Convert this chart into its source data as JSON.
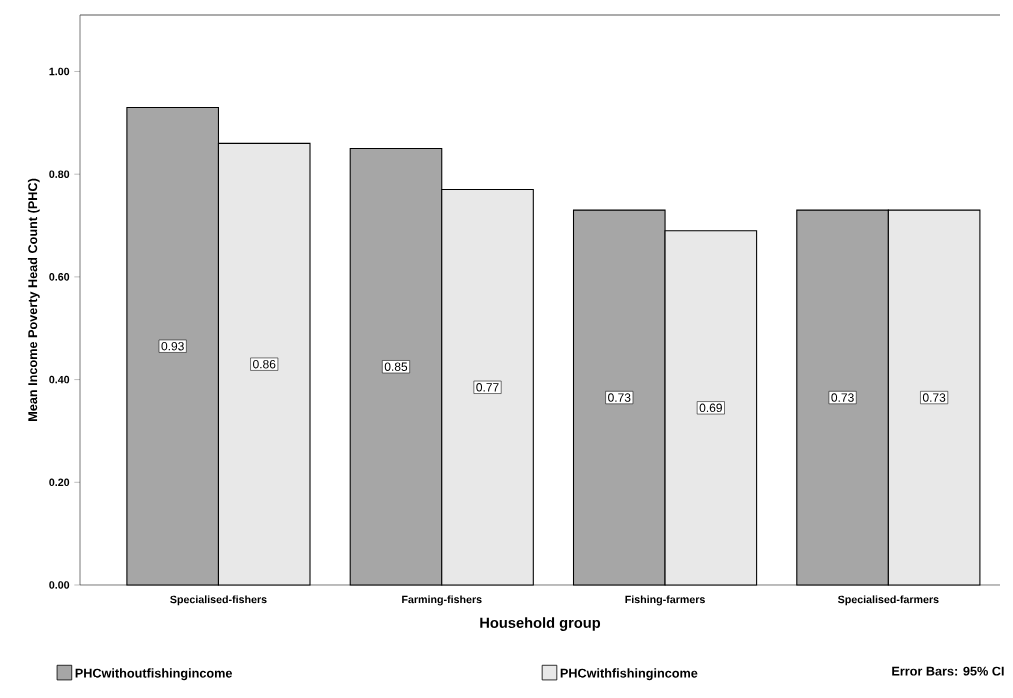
{
  "chart_data": {
    "type": "bar",
    "xlabel": "Household group",
    "ylabel": "Mean Income Poverty Head Count (PHC)",
    "categories": [
      "Specialised-fishers",
      "Farming-fishers",
      "Fishing-farmers",
      "Specialised-farmers"
    ],
    "series": [
      {
        "name": "PHCwithoutfishingincome",
        "color": "#a6a6a6",
        "values": [
          0.93,
          0.85,
          0.73,
          0.73
        ]
      },
      {
        "name": "PHCwithfishingincome",
        "color": "#e8e8e8",
        "values": [
          0.86,
          0.77,
          0.69,
          0.73
        ]
      }
    ],
    "ylim": [
      0,
      1.11
    ],
    "yticks": [
      {
        "value": 0,
        "label": "0.00"
      },
      {
        "value": 0.2,
        "label": "0.20"
      },
      {
        "value": 0.4,
        "label": "0.40"
      },
      {
        "value": 0.6,
        "label": "0.60"
      },
      {
        "value": 0.8,
        "label": "0.80"
      },
      {
        "value": 1.0,
        "label": "1.00"
      }
    ],
    "data_labels": true,
    "legend": "bottom",
    "grid": false,
    "annotations": [
      "Error Bars: 95% CI"
    ]
  }
}
